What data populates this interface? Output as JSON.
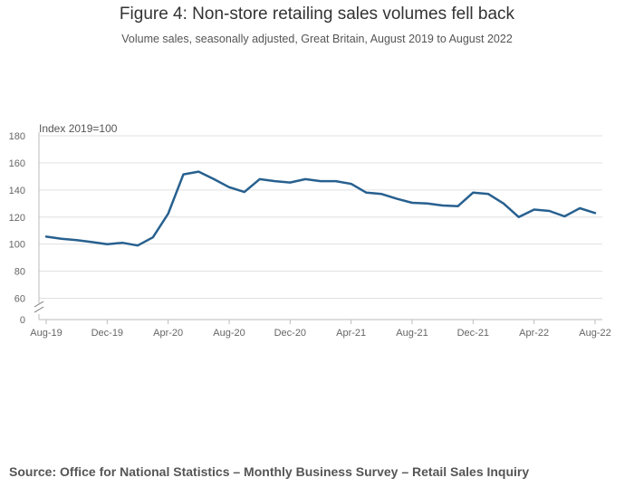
{
  "chart_data": {
    "type": "line",
    "title": "Figure 4: Non-store retailing sales volumes fell back",
    "subtitle": "Volume sales, seasonally adjusted, Great Britain, August 2019 to August 2022",
    "y_unit_label": "Index 2019=100",
    "source": "Source: Office for National Statistics – Monthly Business Survey – Retail Sales Inquiry",
    "ylim": [
      0,
      180
    ],
    "y_axis_break": true,
    "yticks": [
      0,
      60,
      80,
      100,
      120,
      140,
      160,
      180
    ],
    "grid": true,
    "x": [
      "Aug-19",
      "Sep-19",
      "Oct-19",
      "Nov-19",
      "Dec-19",
      "Jan-20",
      "Feb-20",
      "Mar-20",
      "Apr-20",
      "May-20",
      "Jun-20",
      "Jul-20",
      "Aug-20",
      "Sep-20",
      "Oct-20",
      "Nov-20",
      "Dec-20",
      "Jan-21",
      "Feb-21",
      "Mar-21",
      "Apr-21",
      "May-21",
      "Jun-21",
      "Jul-21",
      "Aug-21",
      "Sep-21",
      "Oct-21",
      "Nov-21",
      "Dec-21",
      "Jan-22",
      "Feb-22",
      "Mar-22",
      "Apr-22",
      "May-22",
      "Jun-22",
      "Jul-22",
      "Aug-22"
    ],
    "xtick_labels": [
      "Aug-19",
      "Dec-19",
      "Apr-20",
      "Aug-20",
      "Dec-20",
      "Apr-21",
      "Aug-21",
      "Dec-21",
      "Apr-22",
      "Aug-22"
    ],
    "series": [
      {
        "name": "",
        "color": "#27608f",
        "values": [
          105.5,
          104,
          103,
          101.5,
          100,
          101,
          99,
          105,
          122.5,
          151.5,
          153.5,
          148,
          142,
          138.5,
          148,
          146.5,
          145.5,
          148,
          146.5,
          146.5,
          144.5,
          138,
          137,
          133.5,
          130.5,
          130,
          128.5,
          128,
          138,
          137,
          130,
          120,
          125.5,
          124.5,
          120.5,
          126.5,
          123
        ]
      }
    ]
  }
}
